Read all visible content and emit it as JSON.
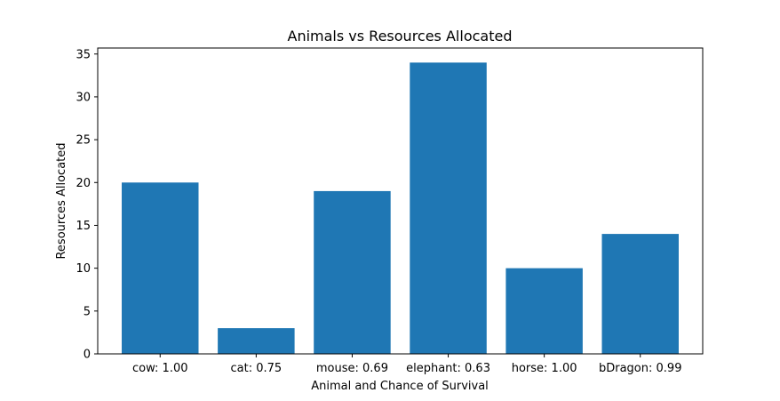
{
  "chart_data": {
    "type": "bar",
    "title": "Animals vs Resources Allocated",
    "xlabel": "Animal and Chance of Survival",
    "ylabel": "Resources Allocated",
    "categories": [
      "cow: 1.00",
      "cat: 0.75",
      "mouse: 0.69",
      "elephant: 0.63",
      "horse: 1.00",
      "bDragon: 0.99"
    ],
    "values": [
      20,
      3,
      19,
      34,
      10,
      14
    ],
    "ylim": [
      0,
      35.7
    ],
    "yticks": [
      0,
      5,
      10,
      15,
      20,
      25,
      30,
      35
    ],
    "grid": false,
    "legend": "none",
    "bar_color": "#1f77b4"
  }
}
